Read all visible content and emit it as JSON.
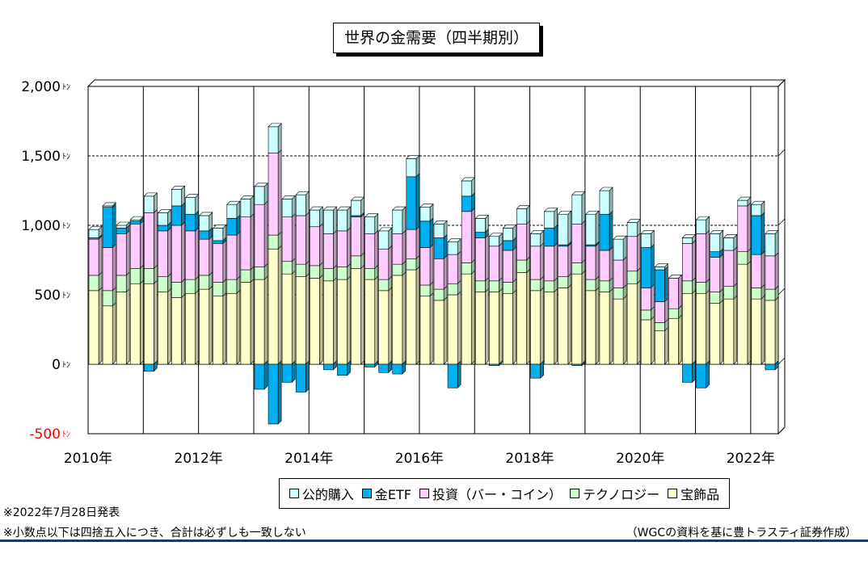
{
  "title": "世界の金需要（四半期別）",
  "notes": [
    "※2022年7月28日発表",
    "※小数点以下は四捨五入につき、合計は必ずしも一致しない"
  ],
  "source": "（WGCの資料を基に豊トラスティ証券作成）",
  "chart_data": {
    "type": "bar",
    "stacked": true,
    "title": "世界の金需要（四半期別）",
    "y_unit": "ﾄﾝ",
    "ylim": [
      -500,
      2000
    ],
    "yticks": [
      {
        "value": -500,
        "label": "-500",
        "color": "#ff0000"
      },
      {
        "value": 0,
        "label": "0",
        "color": "#000000"
      },
      {
        "value": 500,
        "label": "500",
        "color": "#000000"
      },
      {
        "value": 1000,
        "label": "1,000",
        "color": "#000000"
      },
      {
        "value": 1500,
        "label": "1,500",
        "color": "#000000"
      },
      {
        "value": 2000,
        "label": "2,000",
        "color": "#000000"
      }
    ],
    "year_labels": [
      "2010年",
      "2012年",
      "2014年",
      "2016年",
      "2018年",
      "2020年",
      "2022年"
    ],
    "categories": [
      "2010Q1",
      "2010Q2",
      "2010Q3",
      "2010Q4",
      "2011Q1",
      "2011Q2",
      "2011Q3",
      "2011Q4",
      "2012Q1",
      "2012Q2",
      "2012Q3",
      "2012Q4",
      "2013Q1",
      "2013Q2",
      "2013Q3",
      "2013Q4",
      "2014Q1",
      "2014Q2",
      "2014Q3",
      "2014Q4",
      "2015Q1",
      "2015Q2",
      "2015Q3",
      "2015Q4",
      "2016Q1",
      "2016Q2",
      "2016Q3",
      "2016Q4",
      "2017Q1",
      "2017Q2",
      "2017Q3",
      "2017Q4",
      "2018Q1",
      "2018Q2",
      "2018Q3",
      "2018Q4",
      "2019Q1",
      "2019Q2",
      "2019Q3",
      "2019Q4",
      "2020Q1",
      "2020Q2",
      "2020Q3",
      "2020Q4",
      "2021Q1",
      "2021Q2",
      "2021Q3",
      "2021Q4",
      "2022Q1",
      "2022Q2"
    ],
    "grid": true,
    "legend_position": "bottom",
    "series": [
      {
        "name": "宝飾品",
        "color": "#ffffcc",
        "values": [
          530,
          420,
          520,
          580,
          580,
          520,
          480,
          510,
          540,
          490,
          510,
          590,
          610,
          830,
          650,
          630,
          620,
          600,
          610,
          690,
          610,
          530,
          640,
          680,
          490,
          460,
          500,
          650,
          520,
          520,
          510,
          660,
          530,
          520,
          550,
          650,
          530,
          520,
          470,
          580,
          320,
          240,
          330,
          510,
          510,
          440,
          470,
          720,
          470,
          460
        ]
      },
      {
        "name": "テクノロジー",
        "color": "#ccffcc",
        "values": [
          110,
          110,
          120,
          110,
          110,
          110,
          110,
          100,
          100,
          100,
          100,
          90,
          90,
          100,
          90,
          90,
          90,
          90,
          90,
          90,
          80,
          80,
          80,
          80,
          80,
          80,
          80,
          80,
          80,
          80,
          80,
          90,
          80,
          80,
          80,
          80,
          80,
          80,
          80,
          90,
          70,
          60,
          70,
          90,
          80,
          80,
          90,
          90,
          80,
          80
        ]
      },
      {
        "name": "投資（バー・コイン）",
        "color": "#ffccff",
        "values": [
          260,
          310,
          300,
          320,
          400,
          330,
          410,
          350,
          260,
          280,
          320,
          380,
          450,
          590,
          320,
          350,
          280,
          250,
          260,
          280,
          250,
          220,
          220,
          210,
          270,
          220,
          210,
          370,
          310,
          250,
          230,
          260,
          240,
          250,
          220,
          280,
          240,
          220,
          200,
          250,
          160,
          150,
          220,
          270,
          350,
          250,
          260,
          330,
          240,
          240
        ]
      },
      {
        "name": "金ETF",
        "color": "#00b0f0",
        "values": [
          10,
          290,
          40,
          20,
          -50,
          40,
          140,
          120,
          60,
          20,
          120,
          0,
          -180,
          -430,
          -130,
          -200,
          0,
          -40,
          -80,
          10,
          -20,
          -60,
          -70,
          380,
          190,
          150,
          -170,
          110,
          40,
          -10,
          70,
          0,
          -100,
          130,
          10,
          -10,
          10,
          260,
          0,
          0,
          290,
          230,
          0,
          -130,
          -170,
          40,
          0,
          0,
          280,
          -40
        ]
      },
      {
        "name": "公的購入",
        "color": "#ccffff",
        "values": [
          60,
          10,
          20,
          10,
          120,
          90,
          120,
          120,
          110,
          90,
          100,
          130,
          130,
          190,
          130,
          150,
          120,
          170,
          150,
          110,
          120,
          130,
          170,
          130,
          100,
          100,
          90,
          110,
          100,
          70,
          90,
          110,
          90,
          120,
          220,
          210,
          220,
          170,
          150,
          100,
          100,
          20,
          0,
          40,
          100,
          130,
          90,
          40,
          80,
          160
        ]
      }
    ]
  }
}
